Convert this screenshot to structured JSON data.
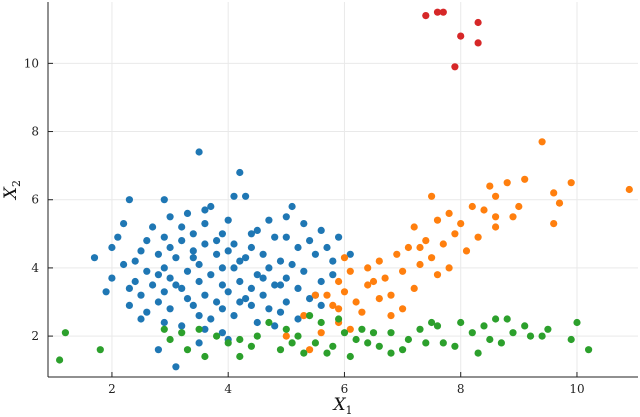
{
  "chart_data": {
    "type": "scatter",
    "xlabel": "X",
    "xlabel_sub": "1",
    "ylabel": "X",
    "ylabel_sub": "2",
    "xlim": [
      0.9,
      11.05
    ],
    "ylim": [
      0.8,
      11.8
    ],
    "xticks": [
      2,
      4,
      6,
      8,
      10
    ],
    "yticks": [
      2,
      4,
      6,
      8,
      10
    ],
    "xtick_labels": [
      "2",
      "4",
      "6",
      "8",
      "10"
    ],
    "ytick_labels": [
      "2",
      "4",
      "6",
      "8",
      "10"
    ],
    "grid": true,
    "legend": "none",
    "colors": {
      "blue": "#1f77b4",
      "orange": "#ff7f0e",
      "green": "#2ca02c",
      "red": "#d62728"
    },
    "series": [
      {
        "color": "#1f77b4",
        "points": [
          [
            3.5,
            7.4
          ],
          [
            4.2,
            6.8
          ],
          [
            4.1,
            6.1
          ],
          [
            4.3,
            6.1
          ],
          [
            2.3,
            6.0
          ],
          [
            2.9,
            6.0
          ],
          [
            3.7,
            5.8
          ],
          [
            3.6,
            5.7
          ],
          [
            5.1,
            5.8
          ],
          [
            3.3,
            5.6
          ],
          [
            4.7,
            5.4
          ],
          [
            5.3,
            5.3
          ],
          [
            2.2,
            5.3
          ],
          [
            3.2,
            5.2
          ],
          [
            2.7,
            5.2
          ],
          [
            4.5,
            5.1
          ],
          [
            5.6,
            5.1
          ],
          [
            3.9,
            5.0
          ],
          [
            3.4,
            5.0
          ],
          [
            2.9,
            4.9
          ],
          [
            4.8,
            4.9
          ],
          [
            5.0,
            4.9
          ],
          [
            5.4,
            4.8
          ],
          [
            2.6,
            4.8
          ],
          [
            3.2,
            4.8
          ],
          [
            4.1,
            4.7
          ],
          [
            3.6,
            4.7
          ],
          [
            4.4,
            4.6
          ],
          [
            2.0,
            4.6
          ],
          [
            3.0,
            4.6
          ],
          [
            5.2,
            4.6
          ],
          [
            2.5,
            4.5
          ],
          [
            4.0,
            4.5
          ],
          [
            3.4,
            4.5
          ],
          [
            4.6,
            4.4
          ],
          [
            2.8,
            4.4
          ],
          [
            3.8,
            4.4
          ],
          [
            5.5,
            4.4
          ],
          [
            1.7,
            4.3
          ],
          [
            3.1,
            4.3
          ],
          [
            4.3,
            4.3
          ],
          [
            2.4,
            4.2
          ],
          [
            4.9,
            4.2
          ],
          [
            5.8,
            4.2
          ],
          [
            3.5,
            4.1
          ],
          [
            2.2,
            4.1
          ],
          [
            4.1,
            4.0
          ],
          [
            3.9,
            4.0
          ],
          [
            2.9,
            4.0
          ],
          [
            4.7,
            4.0
          ],
          [
            5.3,
            3.9
          ],
          [
            2.6,
            3.9
          ],
          [
            3.3,
            3.9
          ],
          [
            4.5,
            3.8
          ],
          [
            3.7,
            3.8
          ],
          [
            2.0,
            3.7
          ],
          [
            5.0,
            3.7
          ],
          [
            3.0,
            3.7
          ],
          [
            4.2,
            3.6
          ],
          [
            2.4,
            3.6
          ],
          [
            5.6,
            3.6
          ],
          [
            3.5,
            3.6
          ],
          [
            4.8,
            3.5
          ],
          [
            2.7,
            3.5
          ],
          [
            3.9,
            3.5
          ],
          [
            4.4,
            3.4
          ],
          [
            3.2,
            3.4
          ],
          [
            5.2,
            3.4
          ],
          [
            1.9,
            3.3
          ],
          [
            2.9,
            3.3
          ],
          [
            4.0,
            3.3
          ],
          [
            3.6,
            3.2
          ],
          [
            4.6,
            3.2
          ],
          [
            2.5,
            3.2
          ],
          [
            5.4,
            3.1
          ],
          [
            3.3,
            3.1
          ],
          [
            4.2,
            3.0
          ],
          [
            2.8,
            3.0
          ],
          [
            3.8,
            3.0
          ],
          [
            5.0,
            3.0
          ],
          [
            2.3,
            2.9
          ],
          [
            4.4,
            2.9
          ],
          [
            3.4,
            2.9
          ],
          [
            3.0,
            2.8
          ],
          [
            4.7,
            2.8
          ],
          [
            3.9,
            2.8
          ],
          [
            2.6,
            2.7
          ],
          [
            4.1,
            2.6
          ],
          [
            3.5,
            2.6
          ],
          [
            5.2,
            2.5
          ],
          [
            3.7,
            2.5
          ],
          [
            4.5,
            2.4
          ],
          [
            2.9,
            2.4
          ],
          [
            3.2,
            2.3
          ],
          [
            4.8,
            2.3
          ],
          [
            3.9,
            2.1
          ],
          [
            3.5,
            1.8
          ],
          [
            3.1,
            1.1
          ],
          [
            2.8,
            1.6
          ],
          [
            5.9,
            4.9
          ],
          [
            5.7,
            4.6
          ],
          [
            6.1,
            4.4
          ],
          [
            5.5,
            3.2
          ],
          [
            4.9,
            3.5
          ],
          [
            3.0,
            5.5
          ],
          [
            4.0,
            5.4
          ],
          [
            5.0,
            5.5
          ],
          [
            3.6,
            5.3
          ],
          [
            4.4,
            5.0
          ],
          [
            2.1,
            4.9
          ],
          [
            3.8,
            4.8
          ],
          [
            4.2,
            4.2
          ],
          [
            5.1,
            4.1
          ],
          [
            3.4,
            4.3
          ],
          [
            2.8,
            3.8
          ],
          [
            4.6,
            3.7
          ],
          [
            5.8,
            3.8
          ],
          [
            3.1,
            3.5
          ],
          [
            2.3,
            3.4
          ],
          [
            4.3,
            3.1
          ],
          [
            5.6,
            2.9
          ],
          [
            3.6,
            2.2
          ],
          [
            4.9,
            2.7
          ],
          [
            2.5,
            2.5
          ],
          [
            4.0,
            1.9
          ]
        ]
      },
      {
        "color": "#ff7f0e",
        "points": [
          [
            9.4,
            7.7
          ],
          [
            9.1,
            6.6
          ],
          [
            8.8,
            6.5
          ],
          [
            9.9,
            6.5
          ],
          [
            8.5,
            6.4
          ],
          [
            10.9,
            6.3
          ],
          [
            9.6,
            6.2
          ],
          [
            8.6,
            6.1
          ],
          [
            7.5,
            6.1
          ],
          [
            9.7,
            5.9
          ],
          [
            8.2,
            5.8
          ],
          [
            9.0,
            5.8
          ],
          [
            8.4,
            5.7
          ],
          [
            7.8,
            5.6
          ],
          [
            8.9,
            5.5
          ],
          [
            7.6,
            5.4
          ],
          [
            8.0,
            5.3
          ],
          [
            9.6,
            5.3
          ],
          [
            7.2,
            5.2
          ],
          [
            8.6,
            5.2
          ],
          [
            7.9,
            5.0
          ],
          [
            8.3,
            4.9
          ],
          [
            7.4,
            4.8
          ],
          [
            7.7,
            4.7
          ],
          [
            7.1,
            4.6
          ],
          [
            8.1,
            4.5
          ],
          [
            6.9,
            4.4
          ],
          [
            7.5,
            4.3
          ],
          [
            6.6,
            4.2
          ],
          [
            7.3,
            4.1
          ],
          [
            7.8,
            4.0
          ],
          [
            6.4,
            4.0
          ],
          [
            7.0,
            3.9
          ],
          [
            6.1,
            3.9
          ],
          [
            7.6,
            3.8
          ],
          [
            6.7,
            3.7
          ],
          [
            5.9,
            3.6
          ],
          [
            6.4,
            3.5
          ],
          [
            7.2,
            3.4
          ],
          [
            6.0,
            3.3
          ],
          [
            5.5,
            3.2
          ],
          [
            6.6,
            3.1
          ],
          [
            6.2,
            3.0
          ],
          [
            5.8,
            2.9
          ],
          [
            7.0,
            2.8
          ],
          [
            6.3,
            2.7
          ],
          [
            5.3,
            2.6
          ],
          [
            6.8,
            2.6
          ],
          [
            5.9,
            2.4
          ],
          [
            6.1,
            2.2
          ],
          [
            5.6,
            2.1
          ],
          [
            5.4,
            1.6
          ],
          [
            5.0,
            2.0
          ],
          [
            5.9,
            2.8
          ],
          [
            6.5,
            3.6
          ],
          [
            5.7,
            3.2
          ],
          [
            7.3,
            4.6
          ],
          [
            8.6,
            5.5
          ],
          [
            6.0,
            4.3
          ],
          [
            6.8,
            3.2
          ]
        ]
      },
      {
        "color": "#2ca02c",
        "points": [
          [
            1.2,
            2.1
          ],
          [
            1.1,
            1.3
          ],
          [
            1.8,
            1.6
          ],
          [
            3.2,
            2.1
          ],
          [
            3.6,
            1.4
          ],
          [
            4.2,
            1.9
          ],
          [
            4.7,
            2.4
          ],
          [
            5.4,
            2.6
          ],
          [
            5.6,
            2.4
          ],
          [
            6.0,
            2.1
          ],
          [
            6.3,
            2.2
          ],
          [
            6.8,
            2.1
          ],
          [
            7.3,
            2.2
          ],
          [
            7.6,
            2.3
          ],
          [
            8.0,
            2.4
          ],
          [
            8.4,
            2.3
          ],
          [
            8.6,
            2.5
          ],
          [
            9.1,
            2.3
          ],
          [
            9.5,
            2.2
          ],
          [
            10.0,
            2.4
          ],
          [
            10.2,
            1.6
          ],
          [
            9.9,
            1.9
          ],
          [
            9.4,
            2.0
          ],
          [
            8.9,
            2.1
          ],
          [
            8.5,
            1.9
          ],
          [
            8.2,
            2.1
          ],
          [
            7.7,
            1.8
          ],
          [
            7.1,
            1.9
          ],
          [
            6.6,
            1.7
          ],
          [
            6.2,
            1.9
          ],
          [
            5.8,
            1.7
          ],
          [
            5.5,
            1.8
          ],
          [
            5.2,
            2.0
          ],
          [
            4.9,
            1.6
          ],
          [
            4.5,
            2.0
          ],
          [
            4.0,
            1.8
          ],
          [
            3.5,
            2.2
          ],
          [
            3.0,
            1.9
          ],
          [
            2.9,
            2.2
          ],
          [
            3.8,
            2.0
          ],
          [
            4.4,
            1.7
          ],
          [
            5.0,
            2.2
          ],
          [
            5.7,
            1.5
          ],
          [
            6.1,
            1.4
          ],
          [
            6.4,
            1.8
          ],
          [
            7.0,
            1.6
          ],
          [
            7.4,
            1.8
          ],
          [
            7.9,
            1.7
          ],
          [
            8.3,
            1.5
          ],
          [
            8.7,
            1.8
          ],
          [
            9.2,
            2.0
          ],
          [
            5.3,
            1.5
          ],
          [
            6.8,
            1.5
          ],
          [
            4.2,
            1.4
          ],
          [
            3.3,
            1.6
          ],
          [
            5.9,
            2.5
          ],
          [
            7.5,
            2.4
          ],
          [
            8.8,
            2.5
          ],
          [
            6.5,
            2.1
          ],
          [
            5.1,
            1.8
          ]
        ]
      },
      {
        "color": "#d62728",
        "points": [
          [
            7.4,
            11.4
          ],
          [
            7.6,
            11.5
          ],
          [
            7.7,
            11.5
          ],
          [
            8.3,
            11.2
          ],
          [
            8.0,
            10.8
          ],
          [
            8.3,
            10.6
          ],
          [
            7.9,
            9.9
          ]
        ]
      }
    ]
  }
}
